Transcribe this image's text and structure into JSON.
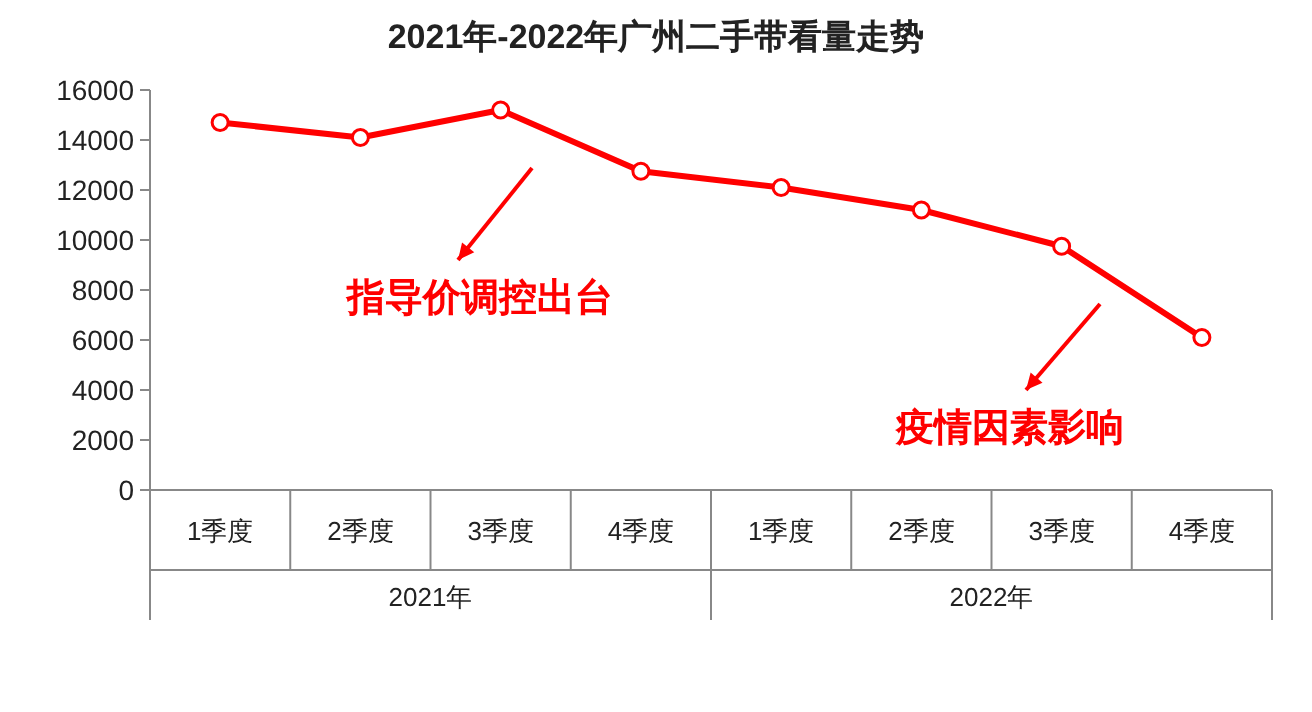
{
  "chart_data": {
    "type": "line",
    "title": "2021年-2022年广州二手带看量走势",
    "categories": [
      "1季度",
      "2季度",
      "3季度",
      "4季度",
      "1季度",
      "2季度",
      "3季度",
      "4季度"
    ],
    "series": [
      {
        "color": "#ff0000",
        "values": [
          14700,
          14100,
          15200,
          12750,
          12100,
          11200,
          9750,
          6100
        ]
      }
    ],
    "ylim": [
      0,
      16000
    ],
    "yticks": [
      0,
      2000,
      4000,
      6000,
      8000,
      10000,
      12000,
      14000,
      16000
    ],
    "marker": "circle",
    "line_style": "solid",
    "grid": false,
    "annotations": [
      "指导价调控出台",
      "疫情因素影响",
      "2021年",
      "2022年"
    ]
  }
}
